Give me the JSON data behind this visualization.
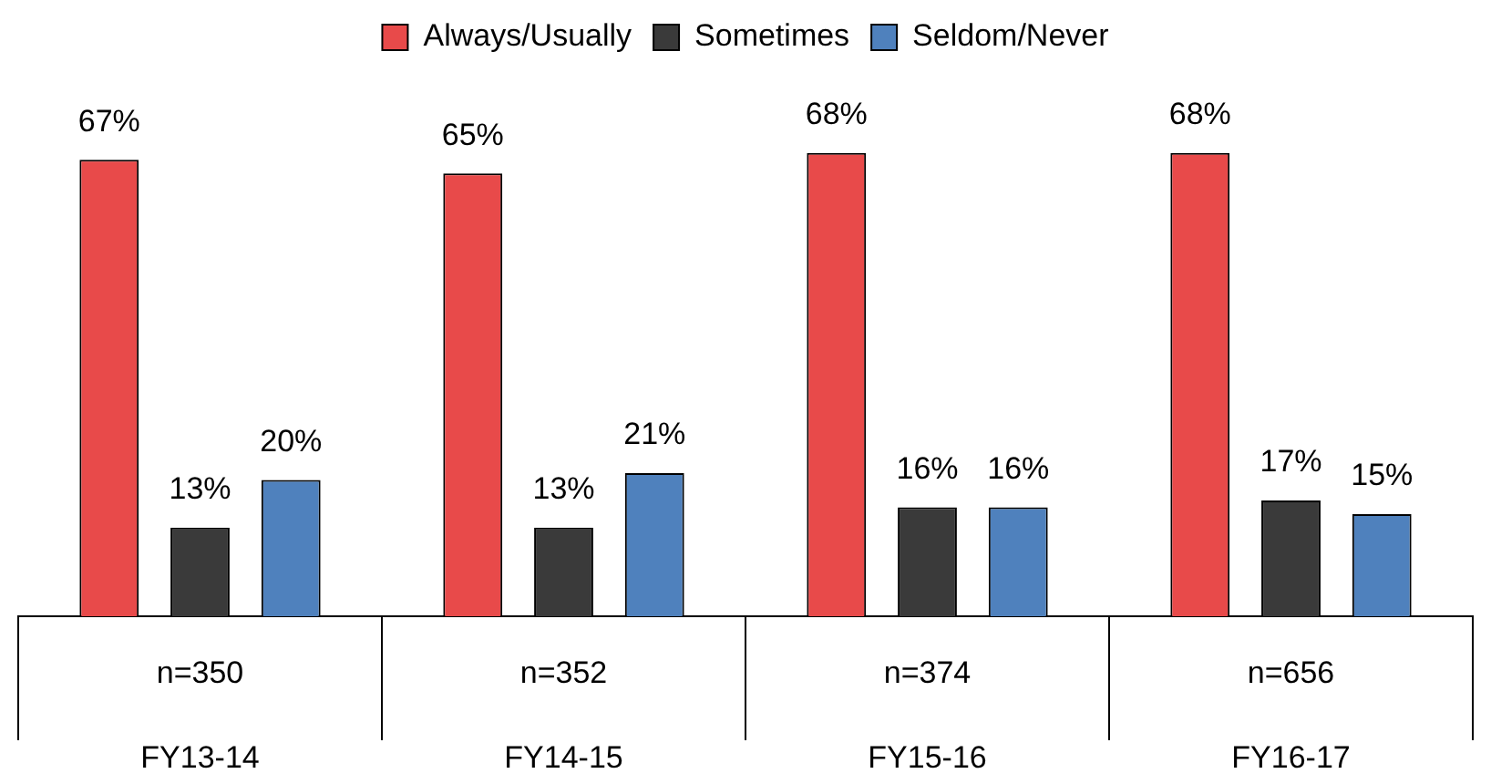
{
  "chart_data": {
    "type": "bar",
    "categories": [
      "FY13-14",
      "FY14-15",
      "FY15-16",
      "FY16-17"
    ],
    "series": [
      {
        "name": "Always/Usually",
        "color": "#e84a4a",
        "values": [
          67,
          65,
          68,
          68
        ],
        "value_labels": [
          "67%",
          "65%",
          "68%",
          "68%"
        ]
      },
      {
        "name": "Sometimes",
        "color": "#3a3a3a",
        "values": [
          13,
          13,
          16,
          17
        ],
        "value_labels": [
          "13%",
          "13%",
          "16%",
          "17%"
        ]
      },
      {
        "name": "Seldom/Never",
        "color": "#4f81bd",
        "values": [
          20,
          21,
          16,
          15
        ],
        "value_labels": [
          "20%",
          "21%",
          "16%",
          "15%"
        ]
      }
    ],
    "annotations": [
      "n=350",
      "n=352",
      "n=374",
      "n=656"
    ],
    "legend": "top"
  }
}
